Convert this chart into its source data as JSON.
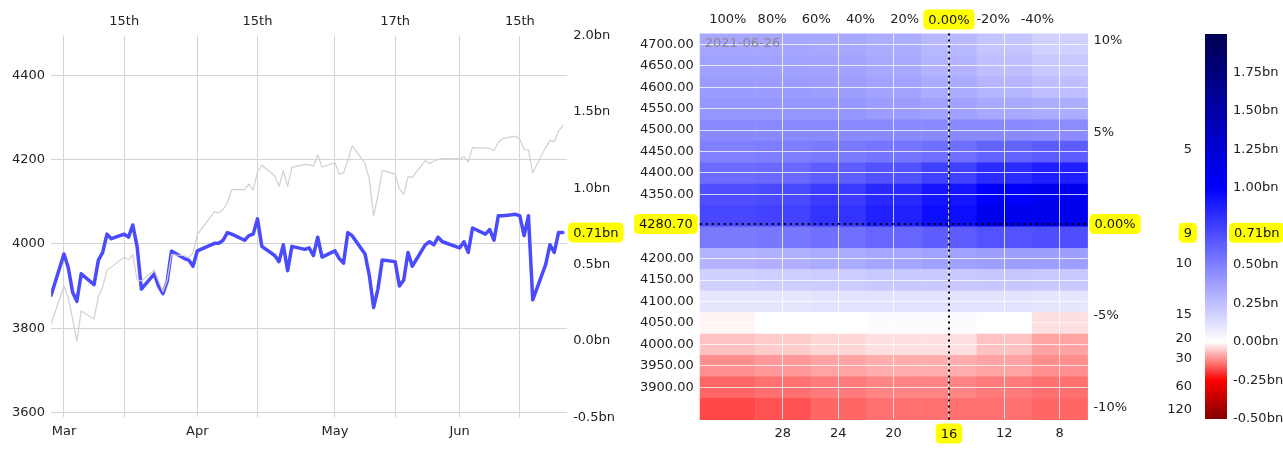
{
  "chart_data": [
    {
      "type": "line",
      "grid": true,
      "xlim": [
        "2021-02-26",
        "2021-06-26"
      ],
      "xticks": [
        {
          "value": "2021-03-01",
          "label": "Mar"
        },
        {
          "value": "2021-04-01",
          "label": "Apr"
        },
        {
          "value": "2021-05-03",
          "label": "May"
        },
        {
          "value": "2021-06-01",
          "label": "Jun"
        }
      ],
      "x2lim": [
        "2021-02-26",
        "2021-06-26"
      ],
      "x2ticks": [
        {
          "value": "2021-03-15",
          "label": "15th"
        },
        {
          "value": "2021-04-15",
          "label": "15th"
        },
        {
          "value": "2021-05-17",
          "label": "17th"
        },
        {
          "value": "2021-06-15",
          "label": "15th"
        }
      ],
      "ylim": [
        3588,
        4495
      ],
      "yticks": [
        3600,
        3800,
        4000,
        4200,
        4400
      ],
      "y2lim": [
        -0.5,
        2.0
      ],
      "y2ticks": [
        {
          "value": -0.5,
          "label": "-0.5bn"
        },
        {
          "value": 0,
          "label": "0.0bn"
        },
        {
          "value": 0.5,
          "label": "0.5bn"
        },
        {
          "value": 1.0,
          "label": "1.0bn"
        },
        {
          "value": 1.5,
          "label": "1.5bn"
        },
        {
          "value": 2.0,
          "label": "2.0bn"
        }
      ],
      "x": [
        "2021-02-26",
        "2021-03-01",
        "2021-03-02",
        "2021-03-03",
        "2021-03-04",
        "2021-03-05",
        "2021-03-08",
        "2021-03-09",
        "2021-03-10",
        "2021-03-11",
        "2021-03-12",
        "2021-03-15",
        "2021-03-16",
        "2021-03-17",
        "2021-03-18",
        "2021-03-19",
        "2021-03-22",
        "2021-03-23",
        "2021-03-24",
        "2021-03-25",
        "2021-03-26",
        "2021-03-29",
        "2021-03-30",
        "2021-03-31",
        "2021-04-01",
        "2021-04-05",
        "2021-04-06",
        "2021-04-07",
        "2021-04-08",
        "2021-04-09",
        "2021-04-12",
        "2021-04-13",
        "2021-04-14",
        "2021-04-15",
        "2021-04-16",
        "2021-04-19",
        "2021-04-20",
        "2021-04-21",
        "2021-04-22",
        "2021-04-23",
        "2021-04-26",
        "2021-04-27",
        "2021-04-28",
        "2021-04-29",
        "2021-04-30",
        "2021-05-03",
        "2021-05-04",
        "2021-05-05",
        "2021-05-06",
        "2021-05-07",
        "2021-05-10",
        "2021-05-11",
        "2021-05-12",
        "2021-05-13",
        "2021-05-14",
        "2021-05-17",
        "2021-05-18",
        "2021-05-19",
        "2021-05-20",
        "2021-05-21",
        "2021-05-24",
        "2021-05-25",
        "2021-05-26",
        "2021-05-27",
        "2021-05-28",
        "2021-06-01",
        "2021-06-02",
        "2021-06-03",
        "2021-06-04",
        "2021-06-07",
        "2021-06-08",
        "2021-06-09",
        "2021-06-10",
        "2021-06-11",
        "2021-06-14",
        "2021-06-15",
        "2021-06-16",
        "2021-06-17",
        "2021-06-18",
        "2021-06-21",
        "2021-06-22",
        "2021-06-23",
        "2021-06-24",
        "2021-06-25"
      ],
      "series": [
        {
          "color": "#d0d0d0",
          "values": [
            3810,
            3900,
            3872,
            3822,
            3769,
            3841,
            3822,
            3875,
            3898,
            3938,
            3945,
            3969,
            3962,
            3974,
            3915,
            3912,
            3938,
            3912,
            3887,
            3914,
            3975,
            3972,
            3968,
            3979,
            4022,
            4077,
            4074,
            4082,
            4098,
            4129,
            4129,
            4142,
            4128,
            4172,
            4187,
            4162,
            4137,
            4174,
            4137,
            4182,
            4189,
            4188,
            4185,
            4212,
            4183,
            4193,
            4166,
            4169,
            4198,
            4233,
            4192,
            4154,
            4066,
            4114,
            4175,
            4166,
            4131,
            4118,
            4160,
            4158,
            4198,
            4191,
            4197,
            4201,
            4203,
            4202,
            4208,
            4195,
            4229,
            4228,
            4227,
            4222,
            4241,
            4251,
            4256,
            4248,
            4225,
            4223,
            4169,
            4229,
            4246,
            4243,
            4268,
            4281
          ]
        },
        {
          "color": "#4a4aff",
          "axis": "y2",
          "values": [
            0.3,
            0.57,
            0.48,
            0.32,
            0.26,
            0.44,
            0.37,
            0.53,
            0.58,
            0.7,
            0.67,
            0.7,
            0.68,
            0.76,
            0.62,
            0.34,
            0.44,
            0.36,
            0.31,
            0.39,
            0.59,
            0.54,
            0.53,
            0.49,
            0.59,
            0.64,
            0.64,
            0.66,
            0.71,
            0.7,
            0.66,
            0.69,
            0.7,
            0.8,
            0.62,
            0.56,
            0.52,
            0.63,
            0.46,
            0.62,
            0.6,
            0.61,
            0.56,
            0.68,
            0.55,
            0.59,
            0.54,
            0.51,
            0.71,
            0.69,
            0.57,
            0.43,
            0.22,
            0.34,
            0.53,
            0.52,
            0.36,
            0.4,
            0.58,
            0.49,
            0.63,
            0.65,
            0.63,
            0.68,
            0.65,
            0.61,
            0.65,
            0.58,
            0.74,
            0.7,
            0.73,
            0.66,
            0.82,
            0.82,
            0.83,
            0.82,
            0.69,
            0.82,
            0.27,
            0.5,
            0.63,
            0.58,
            0.71,
            0.71
          ],
          "value_labels": [
            null,
            null,
            null,
            null,
            null,
            null,
            null,
            null,
            null,
            null,
            null,
            null,
            null,
            null,
            null,
            null,
            null,
            null,
            null,
            null,
            null,
            null,
            null,
            null,
            null,
            null,
            null,
            null,
            null,
            null,
            null,
            null,
            null,
            null,
            null,
            null,
            null,
            null,
            null,
            null,
            null,
            null,
            null,
            null,
            null,
            null,
            null,
            null,
            null,
            null,
            null,
            null,
            null,
            null,
            null,
            null,
            null,
            null,
            null,
            null,
            null,
            null,
            null,
            null,
            null,
            null,
            null,
            null,
            null,
            null,
            null,
            null,
            null,
            null,
            null,
            null,
            null,
            null,
            null,
            null,
            null,
            null,
            null,
            "0.71bn"
          ]
        }
      ]
    },
    {
      "type": "heatmap",
      "grid": true,
      "categories": [
        null,
        "28",
        "24",
        "20",
        "16",
        "12",
        "8"
      ],
      "y_categories": [
        "4700.00",
        "4650.00",
        "4600.00",
        "4550.00",
        "4500.00",
        "4450.00",
        "4400.00",
        "4350.00",
        null,
        null,
        "4200.00",
        "4150.00",
        "4100.00",
        "4050.00",
        "4000.00",
        "3950.00",
        "3900.00",
        null
      ],
      "x2lim": [
        112.7,
        -62.6
      ],
      "x2ticks": [
        {
          "value": 100,
          "label": "100%"
        },
        {
          "value": 80,
          "label": "80%"
        },
        {
          "value": 60,
          "label": "60%"
        },
        {
          "value": 40,
          "label": "40%"
        },
        {
          "value": 20,
          "label": "20%"
        },
        {
          "value": 0,
          "label": "0.00%"
        },
        {
          "value": -20,
          "label": "-20%"
        },
        {
          "value": -40,
          "label": "-40%"
        }
      ],
      "y2lim": [
        -10.64,
        10.38
      ],
      "y2ticks": [
        {
          "value": -10,
          "label": "-10%"
        },
        {
          "value": -5,
          "label": "-5%"
        },
        {
          "value": 5,
          "label": "5%"
        },
        {
          "value": 10,
          "label": "10%"
        }
      ],
      "cells": [
        [
          0.35,
          0.35,
          0.34,
          0.32,
          0.28,
          0.23,
          0.18
        ],
        [
          0.37,
          0.37,
          0.36,
          0.34,
          0.3,
          0.25,
          0.21
        ],
        [
          0.39,
          0.39,
          0.38,
          0.36,
          0.33,
          0.29,
          0.25
        ],
        [
          0.41,
          0.41,
          0.41,
          0.39,
          0.37,
          0.34,
          0.32
        ],
        [
          0.46,
          0.46,
          0.46,
          0.46,
          0.46,
          0.46,
          0.45
        ],
        [
          0.5,
          0.51,
          0.52,
          0.54,
          0.57,
          0.61,
          0.64
        ],
        [
          0.58,
          0.59,
          0.63,
          0.68,
          0.75,
          0.83,
          0.88
        ],
        [
          0.69,
          0.71,
          0.77,
          0.84,
          0.92,
          1.02,
          1.09
        ],
        [
          0.72,
          0.74,
          0.8,
          0.87,
          0.95,
          1.08,
          1.1
        ],
        [
          0.52,
          0.53,
          0.56,
          0.6,
          0.63,
          0.68,
          0.69
        ],
        [
          0.3,
          0.31,
          0.33,
          0.35,
          0.37,
          0.38,
          0.38
        ],
        [
          0.18,
          0.19,
          0.2,
          0.21,
          0.21,
          0.22,
          0.21
        ],
        [
          0.1,
          0.1,
          0.11,
          0.11,
          0.11,
          0.11,
          0.1
        ],
        [
          -0.01,
          0.0,
          0.0,
          0.01,
          0.01,
          0.0,
          -0.03
        ],
        [
          -0.06,
          -0.05,
          -0.04,
          -0.03,
          -0.03,
          -0.06,
          -0.09
        ],
        [
          -0.11,
          -0.1,
          -0.09,
          -0.08,
          -0.08,
          -0.09,
          -0.11
        ],
        [
          -0.15,
          -0.14,
          -0.13,
          -0.12,
          -0.12,
          -0.13,
          -0.14
        ],
        [
          -0.18,
          -0.17,
          -0.15,
          -0.14,
          -0.14,
          -0.14,
          -0.15
        ]
      ],
      "clim": [
        -0.5,
        2.0
      ],
      "cticks": [
        {
          "value": -0.5,
          "label": "-0.50bn"
        },
        {
          "value": -0.25,
          "label": "-0.25bn"
        },
        {
          "value": 0,
          "label": "0.00bn"
        },
        {
          "value": 0.25,
          "label": "0.25bn"
        },
        {
          "value": 0.5,
          "label": "0.50bn"
        },
        {
          "value": 1.0,
          "label": "1.00bn"
        },
        {
          "value": 1.25,
          "label": "1.25bn"
        },
        {
          "value": 1.5,
          "label": "1.50bn"
        },
        {
          "value": 1.75,
          "label": "1.75bn"
        }
      ],
      "ref_lines": [
        {
          "axis": "x",
          "value": "16",
          "label": "16",
          "color": "#000000",
          "line_style": "dotted"
        },
        {
          "axis": "y2",
          "value": 0,
          "label": "0.00%",
          "color": "#000000",
          "line_style": "dotted"
        }
      ],
      "annotations": [
        "2021-06-26",
        "4280.70",
        "5",
        "9",
        "10",
        "15",
        "20",
        "30",
        "60",
        "120",
        "0.71bn"
      ]
    }
  ]
}
